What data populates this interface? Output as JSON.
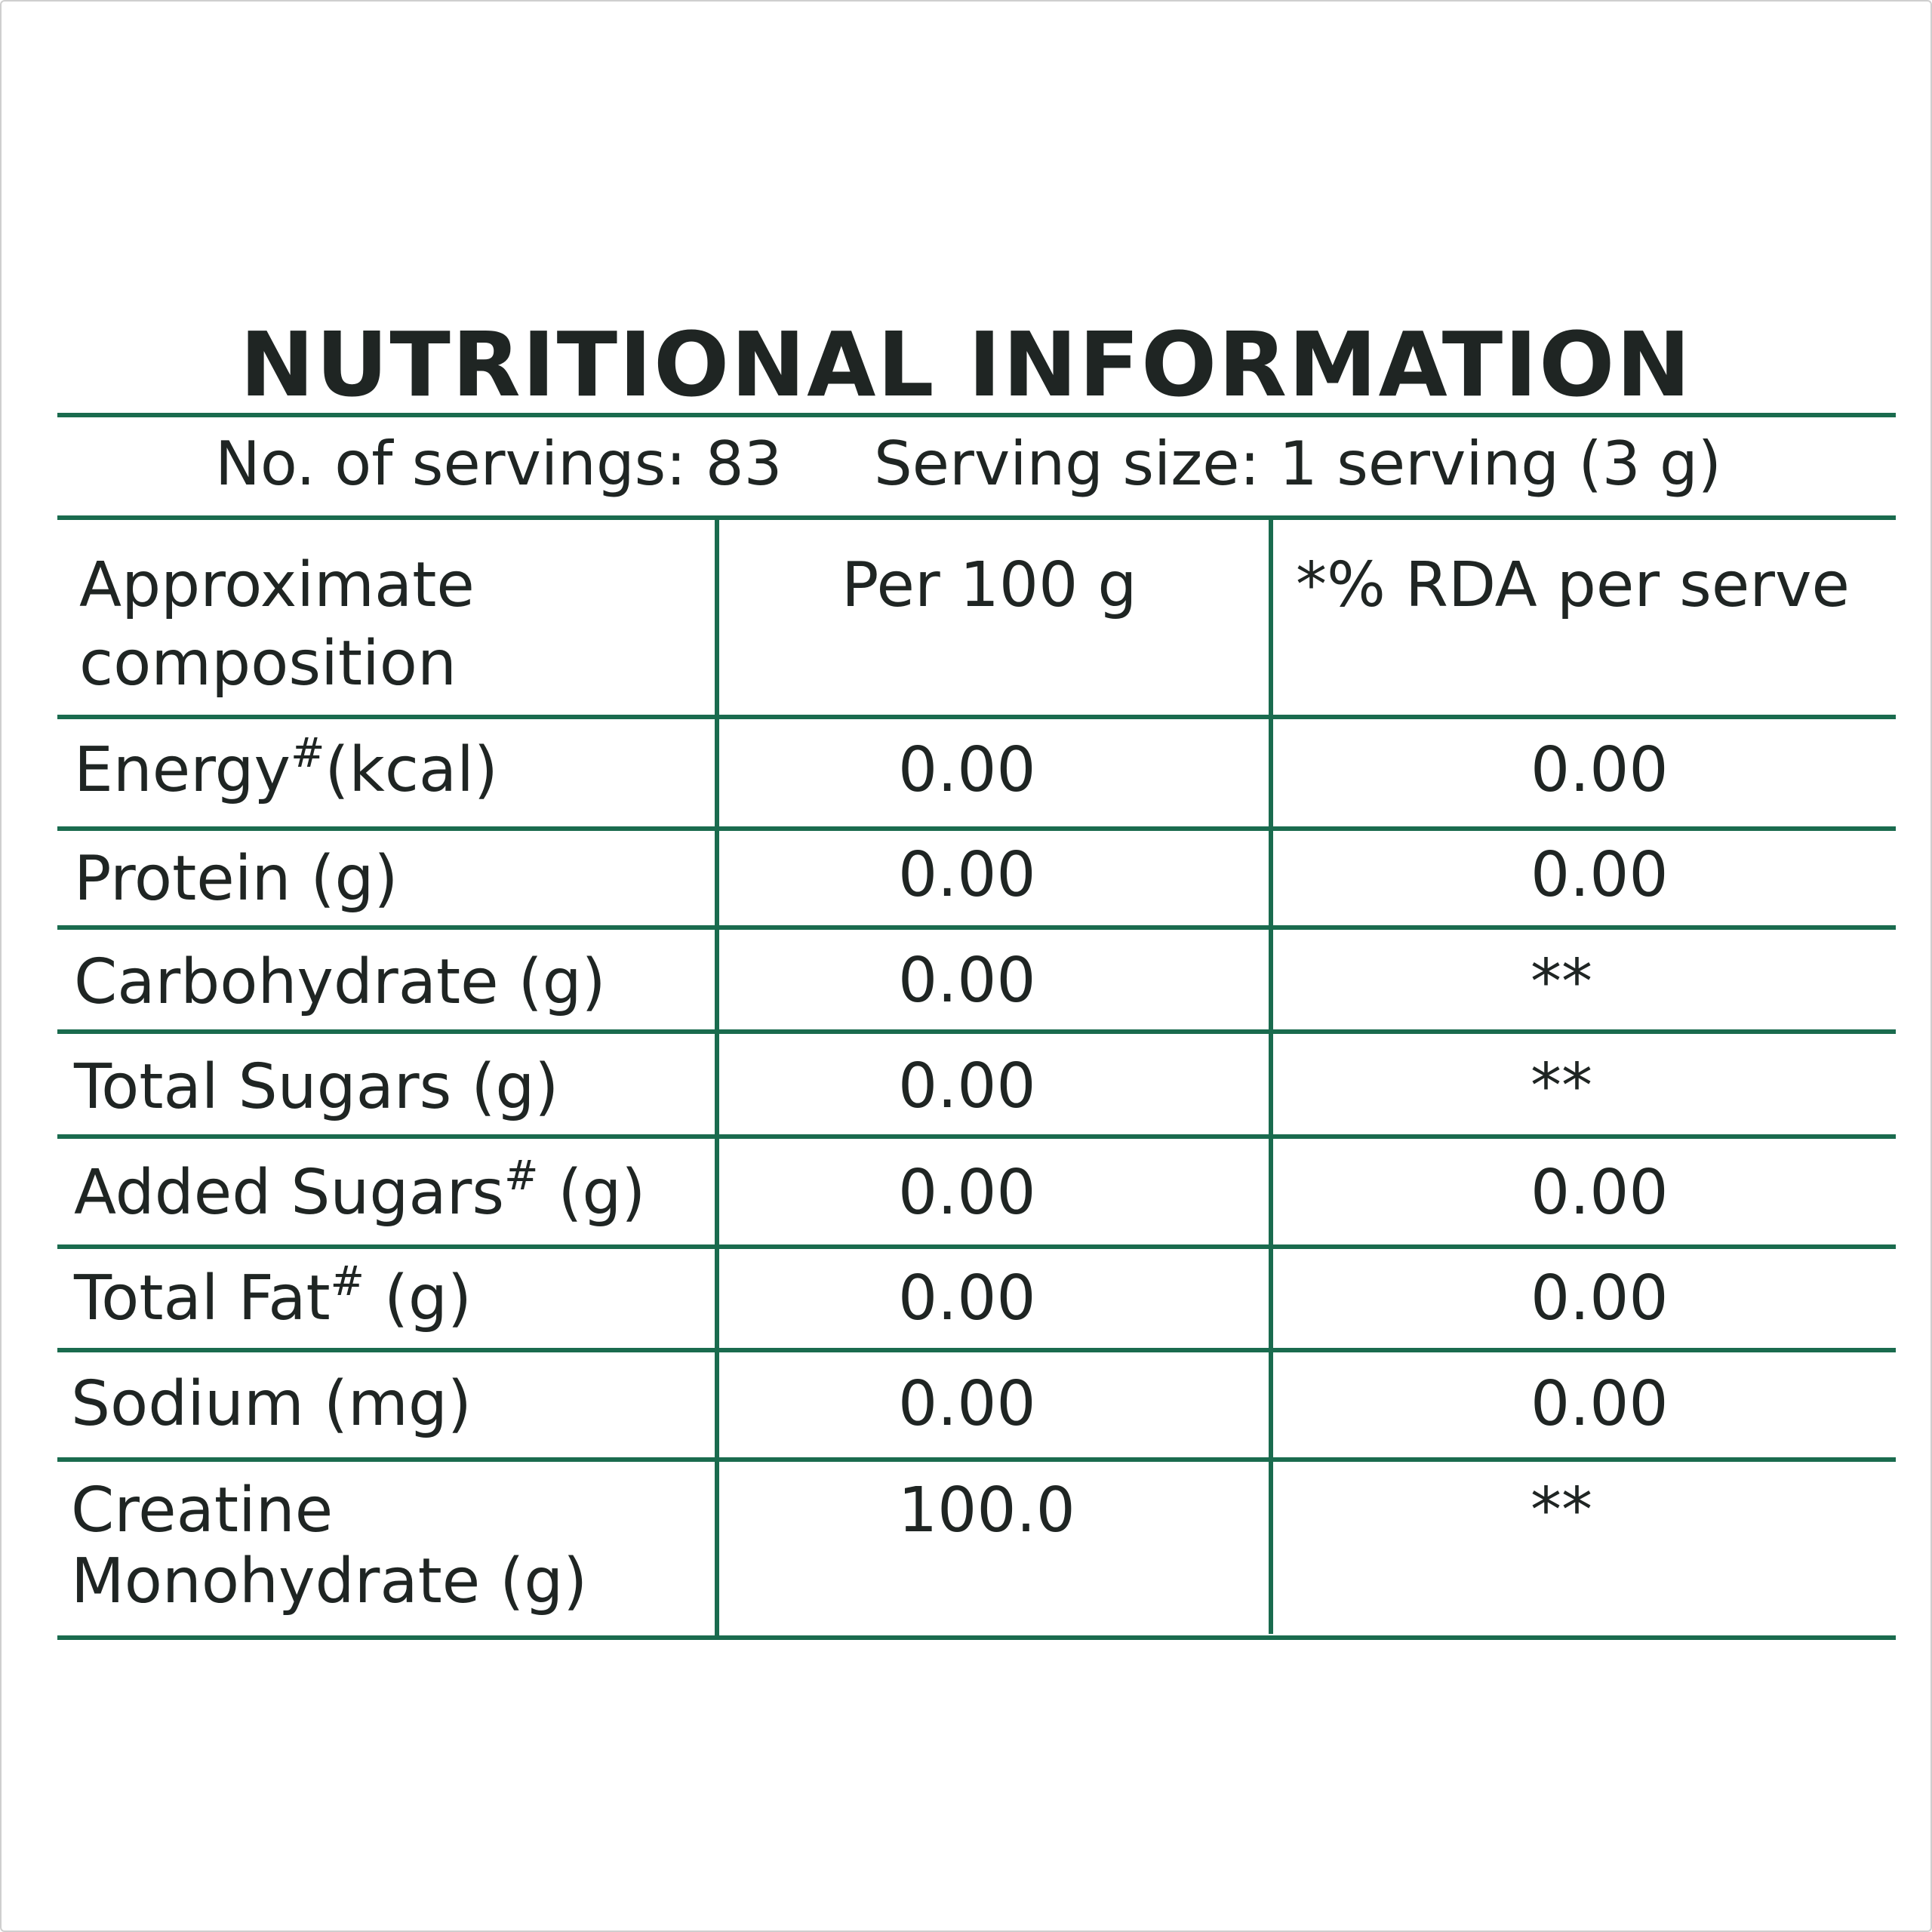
{
  "title": "NUTRITIONAL INFORMATION",
  "servings": {
    "count_text": "No. of servings: 83",
    "size_text": "Serving size: 1 serving (3 g)"
  },
  "table": {
    "headers": {
      "col1_line1": "Approximate",
      "col1_line2": "composition",
      "col2": "Per 100 g",
      "col3": "*% RDA per serve"
    },
    "rows": [
      {
        "label": "Energy",
        "sup": "#",
        "suffix": "(kcal)",
        "per100": "0.00",
        "rda": "0.00"
      },
      {
        "label": "Protein (g)",
        "per100": "0.00",
        "rda": "0.00"
      },
      {
        "label": "Carbohydrate (g)",
        "per100": "0.00",
        "rda": "**"
      },
      {
        "label": "Total Sugars (g)",
        "per100": "0.00",
        "rda": "**"
      },
      {
        "label": "Added Sugars",
        "sup": "#",
        "suffix": " (g)",
        "per100": "0.00",
        "rda": "0.00"
      },
      {
        "label": "Total Fat",
        "sup": "#",
        "suffix": " (g)",
        "per100": "0.00",
        "rda": "0.00"
      },
      {
        "label": "Sodium (mg)",
        "per100": "0.00",
        "rda": "0.00"
      },
      {
        "label_line1": "Creatine",
        "label_line2": "Monohydrate (g)",
        "per100": "100.0",
        "rda": "**"
      }
    ]
  },
  "colors": {
    "rule": "#1a6b4e",
    "text": "#1f2523"
  }
}
